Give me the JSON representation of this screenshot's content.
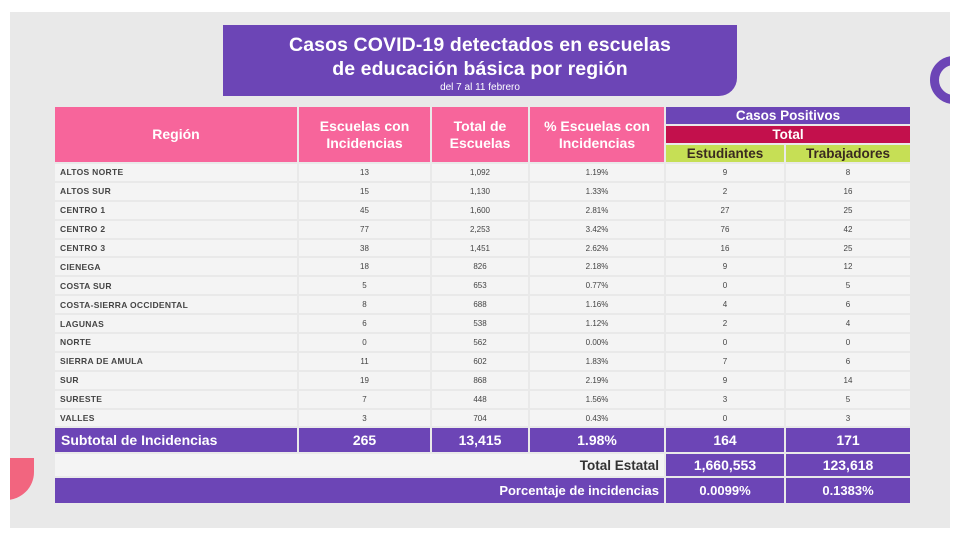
{
  "title": {
    "line1": "Casos COVID-19 detectados en escuelas",
    "line2": "de educación básica por región",
    "subtitle": "del 7 al 11 febrero"
  },
  "colors": {
    "purple": "#6c45b6",
    "pink": "#f7659b",
    "maroon": "#c3104c",
    "green": "#c6df55"
  },
  "headers": {
    "region": "Región",
    "escuelas_con": "Escuelas con Incidencias",
    "total_escuelas": "Total de Escuelas",
    "pct_escuelas": "% Escuelas con Incidencias",
    "casos_positivos": "Casos Positivos",
    "total": "Total",
    "estudiantes": "Estudiantes",
    "trabajadores": "Trabajadores"
  },
  "rows": [
    {
      "region": "ALTOS NORTE",
      "escuelas": "13",
      "total": "1,092",
      "pct": "1.19%",
      "estudiantes": "9",
      "trabajadores": "8"
    },
    {
      "region": "ALTOS SUR",
      "escuelas": "15",
      "total": "1,130",
      "pct": "1.33%",
      "estudiantes": "2",
      "trabajadores": "16"
    },
    {
      "region": "CENTRO 1",
      "escuelas": "45",
      "total": "1,600",
      "pct": "2.81%",
      "estudiantes": "27",
      "trabajadores": "25"
    },
    {
      "region": "CENTRO 2",
      "escuelas": "77",
      "total": "2,253",
      "pct": "3.42%",
      "estudiantes": "76",
      "trabajadores": "42"
    },
    {
      "region": "CENTRO 3",
      "escuelas": "38",
      "total": "1,451",
      "pct": "2.62%",
      "estudiantes": "16",
      "trabajadores": "25"
    },
    {
      "region": "CIENEGA",
      "escuelas": "18",
      "total": "826",
      "pct": "2.18%",
      "estudiantes": "9",
      "trabajadores": "12"
    },
    {
      "region": "COSTA SUR",
      "escuelas": "5",
      "total": "653",
      "pct": "0.77%",
      "estudiantes": "0",
      "trabajadores": "5"
    },
    {
      "region": "COSTA-SIERRA OCCIDENTAL",
      "escuelas": "8",
      "total": "688",
      "pct": "1.16%",
      "estudiantes": "4",
      "trabajadores": "6"
    },
    {
      "region": "LAGUNAS",
      "escuelas": "6",
      "total": "538",
      "pct": "1.12%",
      "estudiantes": "2",
      "trabajadores": "4"
    },
    {
      "region": "NORTE",
      "escuelas": "0",
      "total": "562",
      "pct": "0.00%",
      "estudiantes": "0",
      "trabajadores": "0"
    },
    {
      "region": "SIERRA DE AMULA",
      "escuelas": "11",
      "total": "602",
      "pct": "1.83%",
      "estudiantes": "7",
      "trabajadores": "6"
    },
    {
      "region": "SUR",
      "escuelas": "19",
      "total": "868",
      "pct": "2.19%",
      "estudiantes": "9",
      "trabajadores": "14"
    },
    {
      "region": "SURESTE",
      "escuelas": "7",
      "total": "448",
      "pct": "1.56%",
      "estudiantes": "3",
      "trabajadores": "5"
    },
    {
      "region": "VALLES",
      "escuelas": "3",
      "total": "704",
      "pct": "0.43%",
      "estudiantes": "0",
      "trabajadores": "3"
    }
  ],
  "subtotal": {
    "label": "Subtotal de Incidencias",
    "escuelas": "265",
    "total": "13,415",
    "pct": "1.98%",
    "estudiantes": "164",
    "trabajadores": "171"
  },
  "total_estatal": {
    "label": "Total Estatal",
    "estudiantes": "1,660,553",
    "trabajadores": "123,618"
  },
  "porcentaje": {
    "label": "Porcentaje de incidencias",
    "estudiantes": "0.0099%",
    "trabajadores": "0.1383%"
  }
}
